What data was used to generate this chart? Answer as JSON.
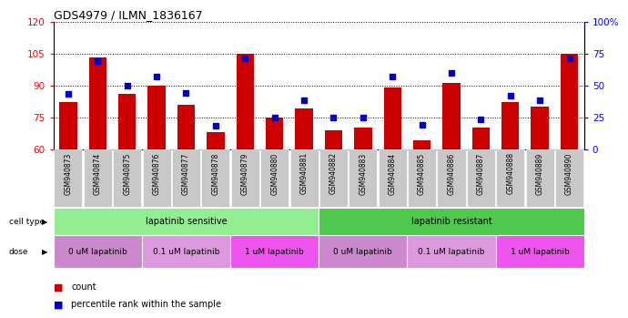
{
  "title": "GDS4979 / ILMN_1836167",
  "samples": [
    "GSM940873",
    "GSM940874",
    "GSM940875",
    "GSM940876",
    "GSM940877",
    "GSM940878",
    "GSM940879",
    "GSM940880",
    "GSM940881",
    "GSM940882",
    "GSM940883",
    "GSM940884",
    "GSM940885",
    "GSM940886",
    "GSM940887",
    "GSM940888",
    "GSM940889",
    "GSM940890"
  ],
  "counts": [
    82,
    103,
    86,
    90,
    81,
    68,
    105,
    75,
    79,
    69,
    70,
    89,
    64,
    91,
    70,
    82,
    80,
    105
  ],
  "percentiles": [
    43,
    69,
    50,
    57,
    44,
    18,
    71,
    25,
    38,
    25,
    25,
    57,
    19,
    60,
    23,
    42,
    38,
    71
  ],
  "ylim_left": [
    60,
    120
  ],
  "ylim_right": [
    0,
    100
  ],
  "yticks_left": [
    60,
    75,
    90,
    105,
    120
  ],
  "yticks_right": [
    0,
    25,
    50,
    75,
    100
  ],
  "bar_color": "#cc0000",
  "dot_color": "#0000cc",
  "cell_type_groups": [
    {
      "label": "lapatinib sensitive",
      "start": 0,
      "end": 9,
      "color": "#90ee90"
    },
    {
      "label": "lapatinib resistant",
      "start": 9,
      "end": 18,
      "color": "#4ec94e"
    }
  ],
  "dose_groups": [
    {
      "label": "0 uM lapatinib",
      "start": 0,
      "end": 3,
      "color": "#cc88cc"
    },
    {
      "label": "0.1 uM lapatinib",
      "start": 3,
      "end": 6,
      "color": "#dd99dd"
    },
    {
      "label": "1 uM lapatinib",
      "start": 6,
      "end": 9,
      "color": "#ee55ee"
    },
    {
      "label": "0 uM lapatinib",
      "start": 9,
      "end": 12,
      "color": "#cc88cc"
    },
    {
      "label": "0.1 uM lapatinib",
      "start": 12,
      "end": 15,
      "color": "#dd99dd"
    },
    {
      "label": "1 uM lapatinib",
      "start": 15,
      "end": 18,
      "color": "#ee55ee"
    }
  ],
  "legend_count_color": "#cc0000",
  "legend_dot_color": "#0000cc"
}
